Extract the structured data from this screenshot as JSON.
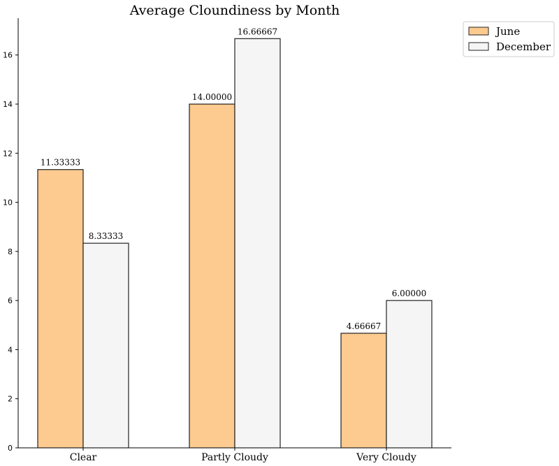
{
  "chart_data": {
    "type": "bar",
    "title": "Average Cloundiness by Month",
    "xlabel": "",
    "ylabel": "",
    "categories": [
      "Clear",
      "Partly Cloudy",
      "Very Cloudy"
    ],
    "series": [
      {
        "name": "June",
        "values": [
          11.33333,
          14.0,
          4.66667
        ],
        "labels": [
          "11.33333",
          "14.00000",
          "4.66667"
        ],
        "color": "#fdca8f"
      },
      {
        "name": "December",
        "values": [
          8.33333,
          16.66667,
          6.0
        ],
        "labels": [
          "8.33333",
          "16.66667",
          "6.00000"
        ],
        "color": "#f5f5f5"
      }
    ],
    "ylim": [
      0,
      17.5
    ],
    "yticks": [
      0,
      2,
      4,
      6,
      8,
      10,
      12,
      14,
      16
    ],
    "grid": false,
    "legend": "top-right, outside plot area",
    "edge_color": "#222222"
  }
}
